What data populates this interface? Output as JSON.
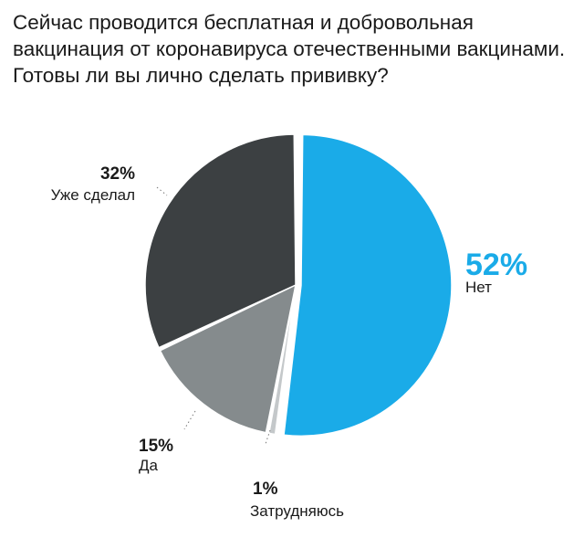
{
  "title": "Сейчас проводится бесплатная и добровольная вакцинация от коронавируса отечественными вакцинами. Готовы ли вы лично сделать прививку?",
  "chart_data": {
    "type": "pie",
    "title": "Сейчас проводится бесплатная и добровольная вакцинация от коронавируса отечественными вакцинами. Готовы ли вы лично сделать прививку?",
    "categories": [
      "Нет",
      "Затрудняюсь",
      "Да",
      "Уже сделал"
    ],
    "values": [
      52,
      1,
      15,
      32
    ],
    "value_labels": [
      "52%",
      "1%",
      "15%",
      "32%"
    ],
    "colors": [
      "#1aabe8",
      "#c4c8ca",
      "#858b8d",
      "#3c4042"
    ],
    "highlight_color": "#1aabe8",
    "start": "12 o'clock, clockwise",
    "legend": "none — labels placed next to slices"
  }
}
